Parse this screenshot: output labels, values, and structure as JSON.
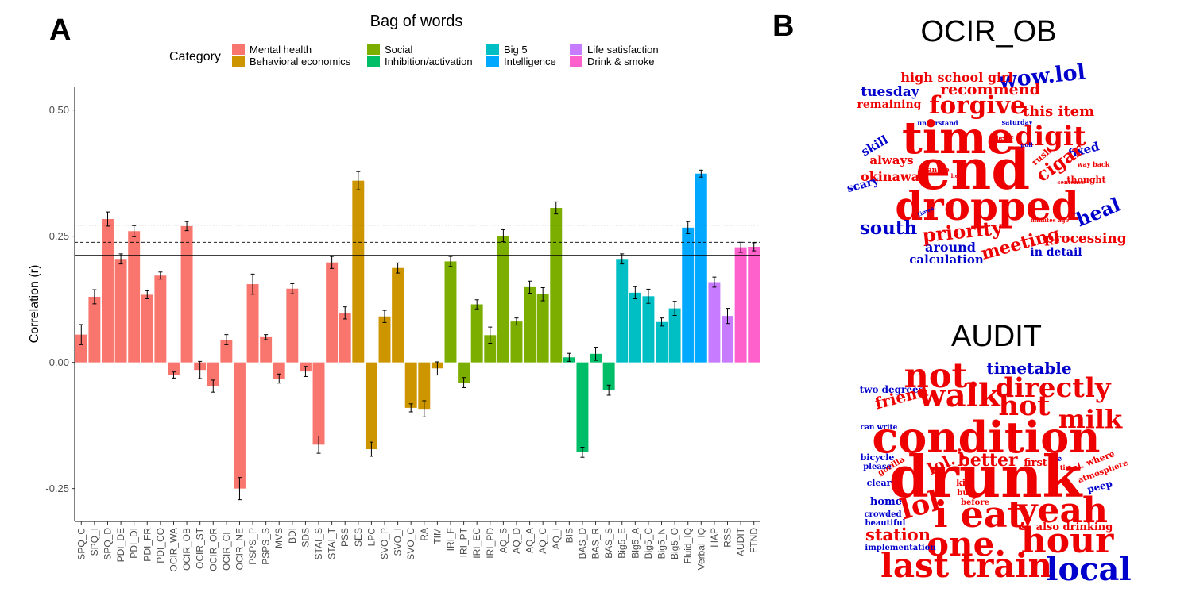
{
  "panel_a_label": "A",
  "panel_b_label": "B",
  "chart_data": {
    "type": "bar",
    "title": "Bag of words",
    "ylabel": "Correlation (r)",
    "xlabel": "",
    "ylim": [
      -0.315,
      0.545
    ],
    "yticks": [
      -0.25,
      0.0,
      0.25,
      0.5
    ],
    "ytick_labels": [
      "-0.25",
      "0.00",
      "0.25",
      "0.50"
    ],
    "legend_title": "Category",
    "legend_placement": "top",
    "grid": false,
    "reference_lines": [
      {
        "style": "solid",
        "value": 0.212
      },
      {
        "style": "dashed",
        "value": 0.238
      },
      {
        "style": "dotted",
        "value": 0.272
      }
    ],
    "categories_legend": [
      {
        "name": "Mental health",
        "color": "#F8766D"
      },
      {
        "name": "Behavioral economics",
        "color": "#CD9600"
      },
      {
        "name": "Social",
        "color": "#7CAE00"
      },
      {
        "name": "Inhibition/activation",
        "color": "#00BE67"
      },
      {
        "name": "Big 5",
        "color": "#00BFC4"
      },
      {
        "name": "Intelligence",
        "color": "#00A9FF"
      },
      {
        "name": "Life satisfaction",
        "color": "#C77CFF"
      },
      {
        "name": "Drink & smoke",
        "color": "#FF61CC"
      }
    ],
    "bars": [
      {
        "label": "SPQ_C",
        "value": 0.055,
        "err": 0.02,
        "group": "Mental health"
      },
      {
        "label": "SPQ_I",
        "value": 0.13,
        "err": 0.014,
        "group": "Mental health"
      },
      {
        "label": "SPQ_D",
        "value": 0.284,
        "err": 0.014,
        "group": "Mental health"
      },
      {
        "label": "PDI_DE",
        "value": 0.205,
        "err": 0.01,
        "group": "Mental health"
      },
      {
        "label": "PDI_DI",
        "value": 0.26,
        "err": 0.011,
        "group": "Mental health"
      },
      {
        "label": "PDI_FR",
        "value": 0.134,
        "err": 0.008,
        "group": "Mental health"
      },
      {
        "label": "PDI_CO",
        "value": 0.172,
        "err": 0.007,
        "group": "Mental health"
      },
      {
        "label": "OCIR_WA",
        "value": -0.025,
        "err": 0.006,
        "group": "Mental health"
      },
      {
        "label": "OCIR_OB",
        "value": 0.27,
        "err": 0.009,
        "group": "Mental health"
      },
      {
        "label": "OCIR_ST",
        "value": -0.015,
        "err": 0.017,
        "group": "Mental health"
      },
      {
        "label": "OCIR_OR",
        "value": -0.047,
        "err": 0.012,
        "group": "Mental health"
      },
      {
        "label": "OCIR_CH",
        "value": 0.045,
        "err": 0.01,
        "group": "Mental health"
      },
      {
        "label": "OCIR_NE",
        "value": -0.25,
        "err": 0.022,
        "group": "Mental health"
      },
      {
        "label": "PSPS_P",
        "value": 0.155,
        "err": 0.02,
        "group": "Mental health"
      },
      {
        "label": "PSPS_S",
        "value": 0.05,
        "err": 0.005,
        "group": "Mental health"
      },
      {
        "label": "MVS",
        "value": -0.032,
        "err": 0.009,
        "group": "Mental health"
      },
      {
        "label": "BDI",
        "value": 0.146,
        "err": 0.01,
        "group": "Mental health"
      },
      {
        "label": "SDS",
        "value": -0.018,
        "err": 0.01,
        "group": "Mental health"
      },
      {
        "label": "STAI_S",
        "value": -0.163,
        "err": 0.017,
        "group": "Mental health"
      },
      {
        "label": "STAI_T",
        "value": 0.198,
        "err": 0.012,
        "group": "Mental health"
      },
      {
        "label": "PSS",
        "value": 0.098,
        "err": 0.012,
        "group": "Mental health"
      },
      {
        "label": "SES",
        "value": 0.36,
        "err": 0.018,
        "group": "Behavioral economics"
      },
      {
        "label": "LPC",
        "value": -0.172,
        "err": 0.014,
        "group": "Behavioral economics"
      },
      {
        "label": "SVO_P",
        "value": 0.091,
        "err": 0.012,
        "group": "Behavioral economics"
      },
      {
        "label": "SVO_I",
        "value": 0.187,
        "err": 0.01,
        "group": "Behavioral economics"
      },
      {
        "label": "SVO_C",
        "value": -0.09,
        "err": 0.008,
        "group": "Behavioral economics"
      },
      {
        "label": "RA",
        "value": -0.092,
        "err": 0.016,
        "group": "Behavioral economics"
      },
      {
        "label": "TIM",
        "value": -0.012,
        "err": 0.013,
        "group": "Behavioral economics"
      },
      {
        "label": "IRI_F",
        "value": 0.2,
        "err": 0.01,
        "group": "Social"
      },
      {
        "label": "IRI_PT",
        "value": -0.04,
        "err": 0.01,
        "group": "Social"
      },
      {
        "label": "IRI_EC",
        "value": 0.115,
        "err": 0.009,
        "group": "Social"
      },
      {
        "label": "IRI_PD",
        "value": 0.054,
        "err": 0.016,
        "group": "Social"
      },
      {
        "label": "AQ_S",
        "value": 0.251,
        "err": 0.012,
        "group": "Social"
      },
      {
        "label": "AQ_D",
        "value": 0.081,
        "err": 0.007,
        "group": "Social"
      },
      {
        "label": "AQ_A",
        "value": 0.149,
        "err": 0.012,
        "group": "Social"
      },
      {
        "label": "AQ_C",
        "value": 0.135,
        "err": 0.013,
        "group": "Social"
      },
      {
        "label": "AQ_I",
        "value": 0.306,
        "err": 0.012,
        "group": "Social"
      },
      {
        "label": "BIS",
        "value": 0.01,
        "err": 0.008,
        "group": "Inhibition/activation"
      },
      {
        "label": "BAS_D",
        "value": -0.178,
        "err": 0.01,
        "group": "Inhibition/activation"
      },
      {
        "label": "BAS_R",
        "value": 0.017,
        "err": 0.013,
        "group": "Inhibition/activation"
      },
      {
        "label": "BAS_S",
        "value": -0.055,
        "err": 0.01,
        "group": "Inhibition/activation"
      },
      {
        "label": "Big5_E",
        "value": 0.205,
        "err": 0.01,
        "group": "Big 5"
      },
      {
        "label": "Big5_A",
        "value": 0.138,
        "err": 0.012,
        "group": "Big 5"
      },
      {
        "label": "Big5_C",
        "value": 0.131,
        "err": 0.014,
        "group": "Big 5"
      },
      {
        "label": "Big5_N",
        "value": 0.08,
        "err": 0.008,
        "group": "Big 5"
      },
      {
        "label": "Big5_O",
        "value": 0.107,
        "err": 0.014,
        "group": "Big 5"
      },
      {
        "label": "Fluid_IQ",
        "value": 0.267,
        "err": 0.012,
        "group": "Intelligence"
      },
      {
        "label": "Verbal_IQ",
        "value": 0.374,
        "err": 0.007,
        "group": "Intelligence"
      },
      {
        "label": "HAP",
        "value": 0.159,
        "err": 0.01,
        "group": "Life satisfaction"
      },
      {
        "label": "RSS",
        "value": 0.092,
        "err": 0.015,
        "group": "Life satisfaction"
      },
      {
        "label": "AUDIT",
        "value": 0.228,
        "err": 0.01,
        "group": "Drink & smoke"
      },
      {
        "label": "FTND",
        "value": 0.229,
        "err": 0.008,
        "group": "Drink & smoke"
      }
    ]
  },
  "wordclouds": [
    {
      "title": "OCIR_OB",
      "words": [
        {
          "t": "wow.lol",
          "c": "blue"
        },
        {
          "t": "high school girl",
          "c": "red"
        },
        {
          "t": "tuesday",
          "c": "blue"
        },
        {
          "t": "recommend",
          "c": "red"
        },
        {
          "t": "remaining",
          "c": "red"
        },
        {
          "t": "forgive",
          "c": "red"
        },
        {
          "t": "this item",
          "c": "red"
        },
        {
          "t": "understand",
          "c": "blue"
        },
        {
          "t": "saturday",
          "c": "blue"
        },
        {
          "t": "time",
          "c": "red"
        },
        {
          "t": "digit",
          "c": "red"
        },
        {
          "t": "skill",
          "c": "blue"
        },
        {
          "t": "always",
          "c": "red"
        },
        {
          "t": "end",
          "c": "red"
        },
        {
          "t": "fixed",
          "c": "blue"
        },
        {
          "t": "pull",
          "c": "blue"
        },
        {
          "t": "the",
          "c": "red"
        },
        {
          "t": "me",
          "c": "red"
        },
        {
          "t": "rush",
          "c": "red"
        },
        {
          "t": "cigar",
          "c": "red"
        },
        {
          "t": "way back",
          "c": "red"
        },
        {
          "t": "okinawa",
          "c": "red"
        },
        {
          "t": "can do",
          "c": "red"
        },
        {
          "t": "hen",
          "c": "red"
        },
        {
          "t": "sentence",
          "c": "red"
        },
        {
          "t": "thought",
          "c": "red"
        },
        {
          "t": "scary",
          "c": "blue"
        },
        {
          "t": "dropped",
          "c": "red"
        },
        {
          "t": "times.",
          "c": "blue"
        },
        {
          "t": "minutes ago",
          "c": "red"
        },
        {
          "t": "heal",
          "c": "blue"
        },
        {
          "t": "south",
          "c": "blue"
        },
        {
          "t": "priority",
          "c": "red"
        },
        {
          "t": "meeting",
          "c": "red"
        },
        {
          "t": "around",
          "c": "blue"
        },
        {
          "t": "processing",
          "c": "red"
        },
        {
          "t": "in detail",
          "c": "blue"
        },
        {
          "t": "calculation",
          "c": "blue"
        }
      ]
    },
    {
      "title": "AUDIT",
      "words": [
        {
          "t": "not.",
          "c": "red"
        },
        {
          "t": "timetable",
          "c": "blue"
        },
        {
          "t": "directly",
          "c": "red"
        },
        {
          "t": "two degrees",
          "c": "blue"
        },
        {
          "t": "friend",
          "c": "red"
        },
        {
          "t": "walk",
          "c": "red"
        },
        {
          "t": "hot",
          "c": "red"
        },
        {
          "t": "milk",
          "c": "red"
        },
        {
          "t": "can write",
          "c": "blue"
        },
        {
          "t": "condition",
          "c": "red"
        },
        {
          "t": "bicycle",
          "c": "blue"
        },
        {
          "t": "gorilla",
          "c": "red"
        },
        {
          "t": "lol. i",
          "c": "red"
        },
        {
          "t": "better",
          "c": "red"
        },
        {
          "t": "first",
          "c": "red"
        },
        {
          "t": "see",
          "c": "blue"
        },
        {
          "t": "lol. where",
          "c": "red"
        },
        {
          "t": "time",
          "c": "red"
        },
        {
          "t": "atmosphere",
          "c": "red"
        },
        {
          "t": "please",
          "c": "blue"
        },
        {
          "t": "drunk",
          "c": "red"
        },
        {
          "t": "clear",
          "c": "blue"
        },
        {
          "t": "kin",
          "c": "red"
        },
        {
          "t": "bug",
          "c": "red"
        },
        {
          "t": "peep",
          "c": "blue"
        },
        {
          "t": "home",
          "c": "blue"
        },
        {
          "t": "before",
          "c": "red"
        },
        {
          "t": "lol",
          "c": "red"
        },
        {
          "t": "i eat",
          "c": "red"
        },
        {
          "t": "yeah",
          "c": "red"
        },
        {
          "t": "crowded",
          "c": "blue"
        },
        {
          "t": "beautiful",
          "c": "blue"
        },
        {
          "t": "also drinking",
          "c": "red"
        },
        {
          "t": "station",
          "c": "red"
        },
        {
          "t": "one.",
          "c": "red"
        },
        {
          "t": "hour",
          "c": "red"
        },
        {
          "t": "implementation",
          "c": "blue"
        },
        {
          "t": "last train",
          "c": "red"
        },
        {
          "t": "local",
          "c": "blue"
        }
      ]
    }
  ]
}
